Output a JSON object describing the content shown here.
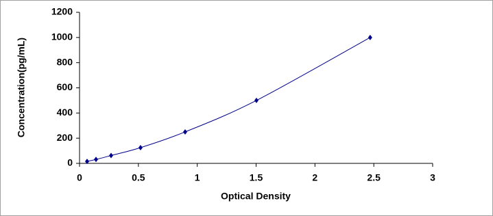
{
  "chart_data": {
    "type": "scatter",
    "x_label": "Optical Density",
    "y_label": "Concentration(pg/mL)",
    "series": [
      {
        "color": "#00008b",
        "x": [
          0.064,
          0.14,
          0.268,
          0.518,
          0.897,
          1.503,
          2.469
        ],
        "values": [
          15.6,
          31.2,
          62.5,
          125,
          250,
          500,
          1000
        ]
      }
    ],
    "connect": "smooth",
    "xlim": [
      0,
      3
    ],
    "xticks": [
      0,
      0.5,
      1,
      1.5,
      2,
      2.5,
      3
    ],
    "ylim": [
      0,
      1200
    ],
    "yticks": [
      0,
      200,
      400,
      600,
      800,
      1000,
      1200
    ],
    "grid": false
  }
}
